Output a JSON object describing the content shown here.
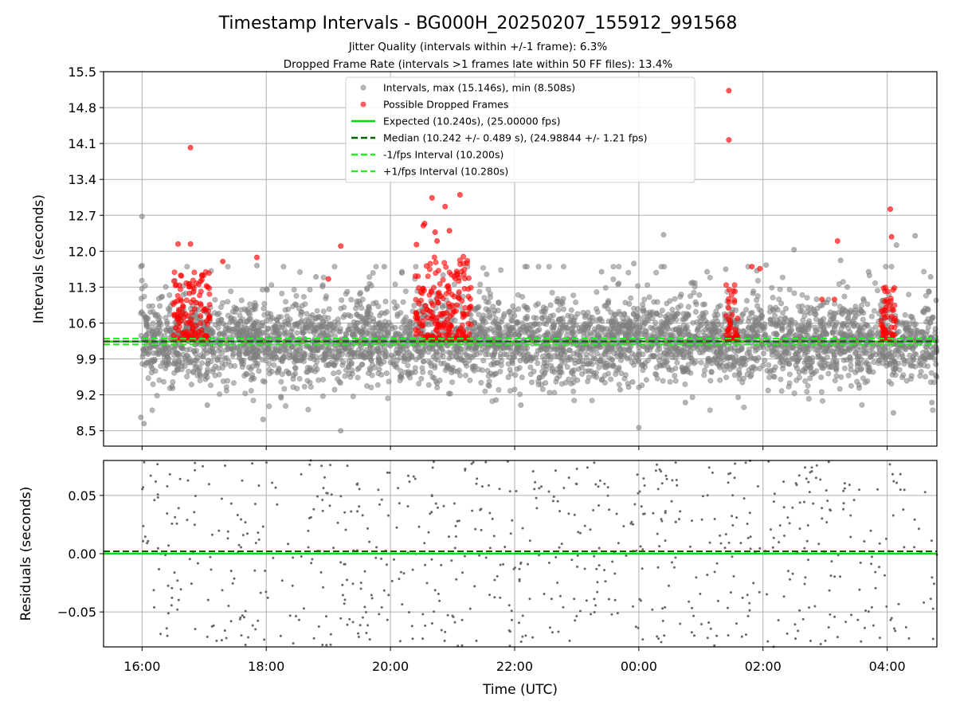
{
  "title": "Timestamp Intervals - BG000H_20250207_155912_991568",
  "subtitle_1": "Jitter Quality (intervals within +/-1 frame): 6.3%",
  "subtitle_2": "Dropped Frame Rate (intervals >1 frames late within 50 FF files): 13.4%",
  "chart_data": [
    {
      "type": "scatter",
      "panel": "intervals",
      "ylabel": "Intervals (seconds)",
      "ylim": [
        8.2,
        15.5
      ],
      "xlim_hours": [
        15.38,
        28.8
      ],
      "yticks": [
        8.5,
        9.2,
        9.9,
        10.6,
        11.3,
        12.0,
        12.7,
        13.4,
        14.1,
        14.8,
        15.5
      ],
      "ytick_labels": [
        "8.5",
        "9.2",
        "9.9",
        "10.6",
        "11.3",
        "12.0",
        "12.7",
        "13.4",
        "14.1",
        "14.8",
        "15.5"
      ],
      "grid": true,
      "legend_placement": "top-center",
      "legend": [
        {
          "label": "Intervals, max (15.146s), min (8.508s)",
          "kind": "dot",
          "color": "#808080"
        },
        {
          "label": "Possible Dropped Frames",
          "kind": "dot",
          "color": "#ff0000"
        },
        {
          "label": "Expected (10.240s), (25.00000 fps)",
          "kind": "solid",
          "color": "#00e000"
        },
        {
          "label": "Median (10.242 +/- 0.489 s), (24.98844 +/- 1.21 fps)",
          "kind": "dashed",
          "color": "#006400"
        },
        {
          "label": "-1/fps Interval (10.200s)",
          "kind": "dashed",
          "color": "#22ee22"
        },
        {
          "label": "+1/fps Interval (10.280s)",
          "kind": "dashed",
          "color": "#22ee22"
        }
      ],
      "reference_lines": {
        "expected": 10.24,
        "median": 10.242,
        "minus_one_fps": 10.2,
        "plus_one_fps": 10.28
      },
      "series": [
        {
          "name": "Intervals, max (15.146s), min (8.508s)",
          "color": "#808080",
          "cloud": {
            "center": 10.24,
            "spread": 0.45,
            "range": [
              8.508,
              15.146
            ],
            "approx_count": 4200
          },
          "outliers": [
            [
              16.0,
              12.68
            ],
            [
              16.0,
              11.72
            ],
            [
              15.98,
              8.76
            ],
            [
              16.03,
              8.64
            ],
            [
              17.05,
              9.0
            ],
            [
              17.85,
              11.72
            ],
            [
              17.95,
              8.72
            ],
            [
              18.8,
              11.5
            ],
            [
              19.2,
              8.5
            ],
            [
              19.9,
              11.7
            ],
            [
              21.55,
              11.55
            ],
            [
              21.7,
              9.1
            ],
            [
              22.1,
              9.0
            ],
            [
              23.4,
              11.6
            ],
            [
              23.7,
              9.3
            ],
            [
              23.9,
              9.45
            ],
            [
              23.92,
              11.76
            ],
            [
              24.0,
              8.56
            ],
            [
              24.4,
              12.32
            ],
            [
              24.75,
              9.05
            ],
            [
              25.1,
              11.6
            ],
            [
              25.4,
              11.65
            ],
            [
              25.6,
              9.15
            ],
            [
              25.9,
              11.62
            ],
            [
              26.05,
              11.73
            ],
            [
              26.5,
              12.03
            ],
            [
              27.25,
              11.82
            ],
            [
              27.7,
              11.6
            ],
            [
              28.1,
              8.85
            ],
            [
              28.15,
              12.12
            ],
            [
              28.45,
              12.3
            ],
            [
              28.7,
              11.5
            ],
            [
              28.72,
              9.05
            ]
          ]
        },
        {
          "name": "Possible Dropped Frames",
          "color": "#ff0000",
          "clusters": [
            {
              "start": 16.5,
              "end": 17.1,
              "ymin": 10.28,
              "ymax": 11.6
            },
            {
              "start": 20.4,
              "end": 21.3,
              "ymin": 10.28,
              "ymax": 11.9
            },
            {
              "start": 25.4,
              "end": 25.6,
              "ymin": 10.28,
              "ymax": 11.4
            },
            {
              "start": 27.9,
              "end": 28.15,
              "ymin": 10.28,
              "ymax": 11.3
            }
          ],
          "outliers": [
            [
              16.78,
              14.02
            ],
            [
              16.58,
              12.14
            ],
            [
              16.78,
              12.14
            ],
            [
              17.3,
              11.8
            ],
            [
              17.85,
              11.88
            ],
            [
              19.0,
              11.46
            ],
            [
              19.2,
              12.1
            ],
            [
              20.42,
              12.13
            ],
            [
              20.53,
              12.5
            ],
            [
              20.55,
              12.54
            ],
            [
              20.67,
              13.04
            ],
            [
              20.72,
              12.37
            ],
            [
              20.75,
              12.2
            ],
            [
              20.88,
              12.87
            ],
            [
              20.95,
              12.4
            ],
            [
              21.12,
              13.1
            ],
            [
              25.45,
              15.13
            ],
            [
              25.45,
              14.17
            ],
            [
              25.82,
              11.7
            ],
            [
              25.95,
              11.66
            ],
            [
              26.95,
              11.06
            ],
            [
              27.15,
              11.06
            ],
            [
              27.2,
              12.2
            ],
            [
              28.05,
              12.82
            ],
            [
              28.07,
              12.28
            ]
          ]
        }
      ]
    },
    {
      "type": "scatter",
      "panel": "residuals",
      "xlabel": "Time (UTC)",
      "ylabel": "Residuals (seconds)",
      "ylim": [
        -0.08,
        0.08
      ],
      "yticks": [
        -0.05,
        0.0,
        0.05
      ],
      "ytick_labels": [
        "−0.05",
        "0.00",
        "0.05"
      ],
      "xticks_hours": [
        16,
        18,
        20,
        22,
        24,
        26,
        28
      ],
      "xtick_labels": [
        "16:00",
        "18:00",
        "20:00",
        "22:00",
        "00:00",
        "02:00",
        "04:00"
      ],
      "grid": true,
      "reference_lines": {
        "expected": 0.0,
        "median": 0.002
      },
      "series": [
        {
          "name": "Residuals",
          "color": "#666666",
          "cloud": {
            "range": [
              -0.08,
              0.08
            ],
            "approx_count": 700
          }
        }
      ]
    }
  ]
}
